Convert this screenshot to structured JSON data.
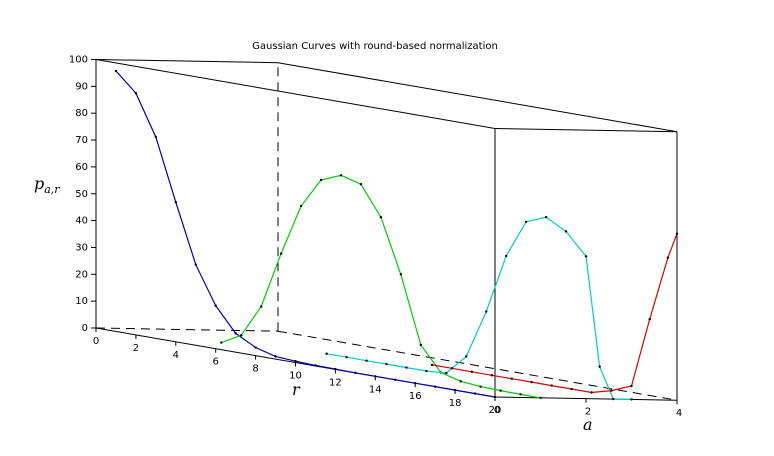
{
  "chart_data": {
    "type": "line",
    "title": "Gaussian Curves with round-based normalization",
    "zlabel_main": "p",
    "zlabel_sub": "a,r",
    "xlabel": "r",
    "ylabel": "a",
    "r_ticks": [
      "0",
      "2",
      "4",
      "6",
      "8",
      "10",
      "12",
      "14",
      "16",
      "18",
      "20"
    ],
    "a_ticks": [
      "0",
      "2",
      "4"
    ],
    "z_ticks": [
      "0",
      "10",
      "20",
      "30",
      "40",
      "50",
      "60",
      "70",
      "80",
      "90",
      "100"
    ],
    "rlim": [
      0,
      20
    ],
    "alim": [
      0,
      4
    ],
    "zlim": [
      0,
      100
    ],
    "grid": false,
    "series": [
      {
        "a": 0,
        "color": "#0000b4",
        "r": [
          1,
          2,
          3,
          4,
          5,
          6,
          7,
          8,
          9,
          10,
          11,
          12,
          13,
          14,
          15,
          16,
          17,
          18,
          19,
          20
        ],
        "values": [
          97,
          90,
          75,
          52,
          30,
          16,
          7,
          3,
          1,
          0.5,
          0.2,
          0.1,
          0,
          0,
          0,
          0,
          0,
          0,
          0,
          0
        ]
      },
      {
        "a": 1,
        "color": "#00cc00",
        "r": [
          4,
          5,
          6,
          7,
          8,
          9,
          10,
          11,
          12,
          13,
          14,
          15,
          16,
          17,
          18,
          19,
          20
        ],
        "values": [
          0,
          4,
          16,
          37,
          56,
          67,
          70,
          68,
          57,
          37,
          12,
          3,
          1,
          0.3,
          0.1,
          0,
          0
        ]
      },
      {
        "a": 2,
        "color": "#00cccc",
        "r": [
          7,
          8,
          9,
          10,
          11,
          12,
          13,
          14,
          15,
          16,
          17,
          18,
          19,
          20
        ],
        "values": [
          0,
          0,
          0,
          0,
          0,
          0,
          0.5,
          8,
          26,
          48,
          62,
          65,
          61,
          53
        ]
      },
      {
        "a": 3,
        "color": "#dd0000",
        "r": [
          10,
          11,
          12,
          13,
          14,
          15,
          16,
          17,
          18,
          19,
          20
        ],
        "values": [
          0,
          0,
          0,
          0,
          0,
          0,
          0,
          0,
          0,
          2,
          5
        ]
      }
    ],
    "extra_points": {
      "cyan_tail": {
        "a": [
          2.3,
          2.6,
          3.0
        ],
        "r": [
          20,
          20,
          20
        ],
        "values": [
          12,
          0,
          0
        ]
      },
      "red_tail": {
        "a": [
          3.4,
          3.8,
          4.0
        ],
        "r": [
          20,
          20,
          20
        ],
        "values": [
          30,
          53,
          62
        ]
      }
    }
  }
}
